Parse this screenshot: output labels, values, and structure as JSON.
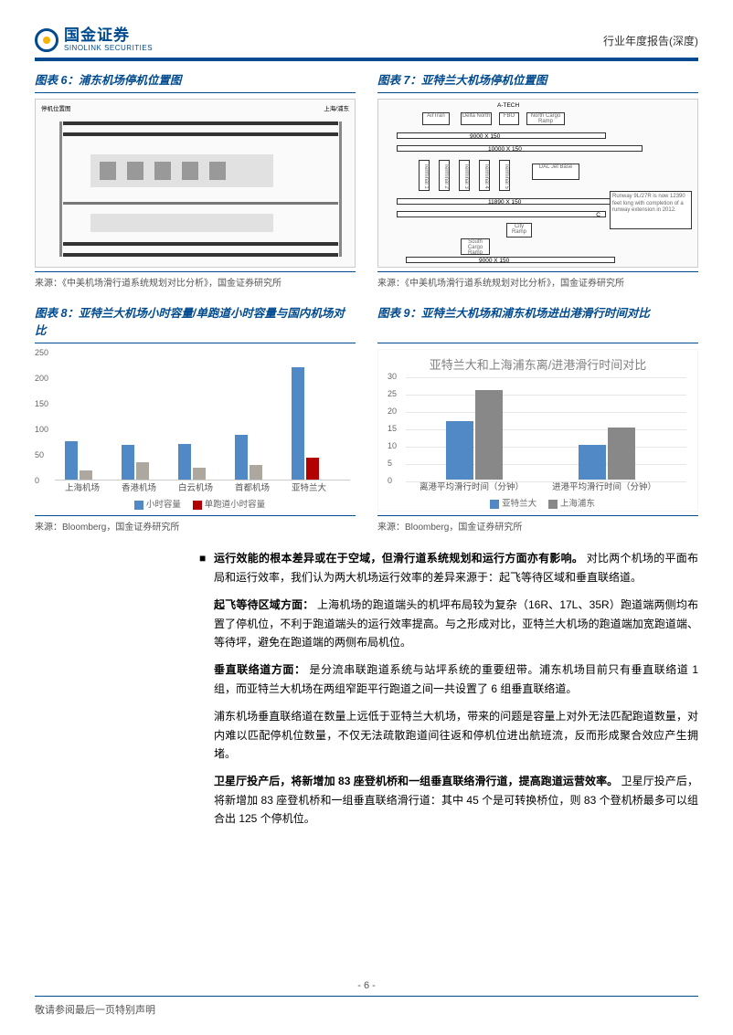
{
  "brand": {
    "cn": "国金证券",
    "en": "SINOLINK SECURITIES",
    "accent_color": "#004a8f",
    "dot_color": "#f4b400"
  },
  "header_right": "行业年度报告(深度)",
  "fig6": {
    "title": "图表 6：浦东机场停机位置图",
    "source": "来源：《中美机场滑行道系统规划对比分析》，国金证券研究所",
    "labels": {
      "top_right": "上海/浦东",
      "top_left": "停机位置图"
    }
  },
  "fig7": {
    "title": "图表 7：亚特兰大机场停机位置图",
    "source": "来源：《中美机场滑行道系统规划对比分析》，国金证券研究所",
    "labels": {
      "atech": "A-TECH",
      "airtran": "AirTran",
      "delta": "Delta North",
      "fbo": "FBO",
      "north_cargo": "North Cargo Ramp",
      "t1": "Terminal 1",
      "t2": "Terminal 2",
      "t3": "Terminal 3",
      "t4": "Terminal 4",
      "t5": "Terminal 5",
      "dal": "DAL Jet Base",
      "r1": "9000 X 150",
      "r2": "10000 X 150",
      "r3": "11890 X 150",
      "r4": "9000 X 150",
      "c": "C",
      "callout_title": "Runway 9L/27R is now 12390 feet long with completion of a runway extension in 2012.",
      "city": "City Ramp",
      "south_cargo": "South Cargo Ramp"
    }
  },
  "chart8": {
    "title": "图表 8：亚特兰大机场小时容量/单跑道小时容量与国内机场对比",
    "source": "来源：Bloomberg，国金证券研究所",
    "type": "grouped-bar",
    "ylim": [
      0,
      250
    ],
    "ytick_step": 50,
    "categories": [
      "上海机场",
      "香港机场",
      "白云机场",
      "首都机场",
      "亚特兰大"
    ],
    "series": [
      {
        "name": "小时容量",
        "color": "#5089c6",
        "values": [
          76,
          68,
          71,
          88,
          220
        ]
      },
      {
        "name": "单跑道小时容量",
        "color": "#b30000",
        "color_others": "#aca8a0",
        "values": [
          19,
          34,
          24,
          29,
          44
        ]
      }
    ],
    "legend": [
      "小时容量",
      "单跑道小时容量"
    ],
    "label_fontsize": 9.5
  },
  "chart9": {
    "title": "图表 9：亚特兰大机场和浦东机场进出港滑行时间对比",
    "inner_title": "亚特兰大和上海浦东离/进港滑行时间对比",
    "source": "来源：Bloomberg，国金证券研究所",
    "type": "grouped-bar",
    "ylim": [
      0,
      30
    ],
    "ytick_step": 5,
    "categories": [
      "离港平均滑行时间（分钟）",
      "进港平均滑行时间（分钟）"
    ],
    "series": [
      {
        "name": "亚特兰大",
        "color": "#5089c6",
        "values": [
          17,
          10
        ]
      },
      {
        "name": "上海浦东",
        "color": "#888888",
        "values": [
          26,
          15
        ]
      }
    ],
    "legend": [
      "亚特兰大",
      "上海浦东"
    ],
    "title_color": "#808080"
  },
  "body": {
    "bullet1_bold": "运行效能的根本差异或在于空域，但滑行道系统规划和运行方面亦有影响。",
    "bullet1_rest": "对比两个机场的平面布局和运行效率，我们认为两大机场运行效率的差异来源于：起飞等待区域和垂直联络道。",
    "p2_bold": "起飞等待区域方面：",
    "p2_rest": "上海机场的跑道端头的机坪布局较为复杂（16R、17L、35R）跑道端两侧均布置了停机位，不利于跑道端头的运行效率提高。与之形成对比，亚特兰大机场的跑道端加宽跑道端、等待坪，避免在跑道端的两侧布局机位。",
    "p3_bold": "垂直联络道方面：",
    "p3_rest": "是分流串联跑道系统与站坪系统的重要纽带。浦东机场目前只有垂直联络道 1 组，而亚特兰大机场在两组窄距平行跑道之间一共设置了 6 组垂直联络道。",
    "p4": "浦东机场垂直联络道在数量上远低于亚特兰大机场，带来的问题是容量上对外无法匹配跑道数量，对内难以匹配停机位数量，不仅无法疏散跑道间往返和停机位进出航班流，反而形成聚合效应产生拥堵。",
    "p5_bold": "卫星厅投产后，将新增加 83 座登机桥和一组垂直联络滑行道，提高跑道运营效率。",
    "p5_rest": "卫星厅投产后，将新增加 83 座登机桥和一组垂直联络滑行道：其中 45 个是可转换桥位，则 83 个登机桥最多可以组合出 125 个停机位。"
  },
  "footer": {
    "note": "敬请参阅最后一页特别声明",
    "page": "- 6 -"
  }
}
